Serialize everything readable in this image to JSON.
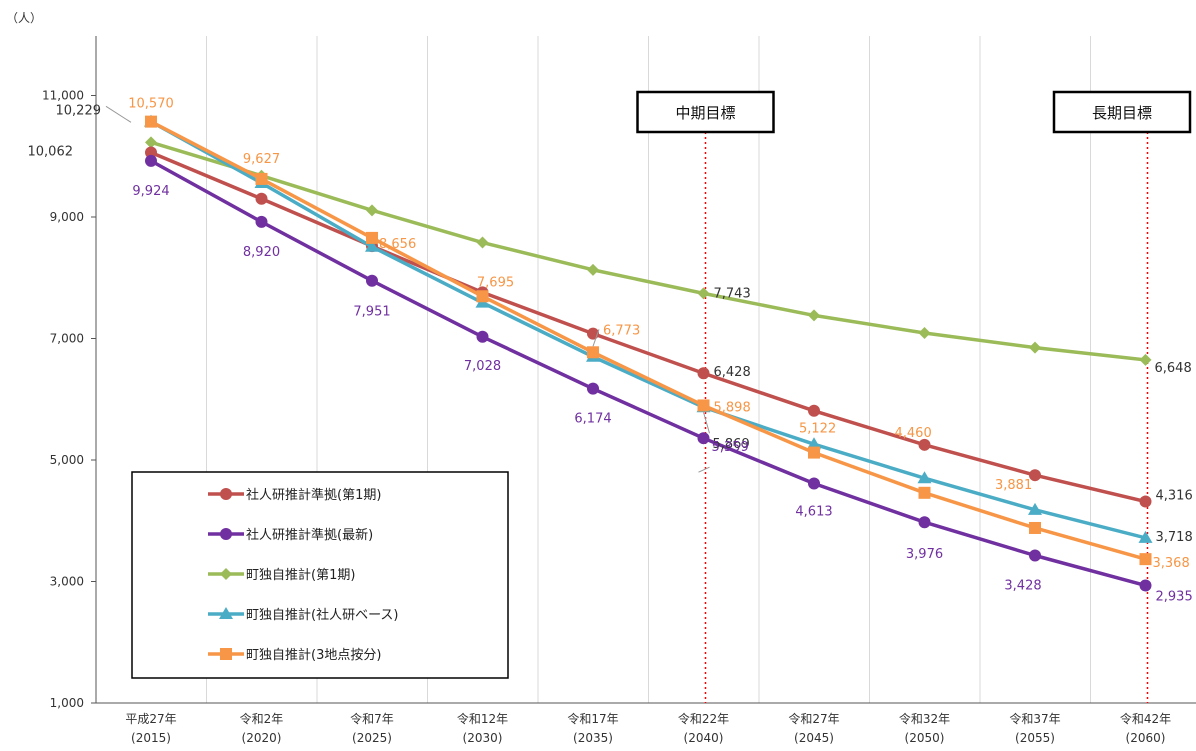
{
  "chart_data": {
    "type": "line",
    "title": "",
    "unit_label": "（人）",
    "ylim": [
      1000,
      12000
    ],
    "yticks": [
      1000,
      3000,
      5000,
      7000,
      9000,
      11000
    ],
    "yticks_display": [
      "1,000",
      "3,000",
      "5,000",
      "7,000",
      "9,000",
      "11,000"
    ],
    "grid": "vertical",
    "categories": [
      {
        "era": "平成27年",
        "year": "(2015)"
      },
      {
        "era": "令和2年",
        "year": "(2020)"
      },
      {
        "era": "令和7年",
        "year": "(2025)"
      },
      {
        "era": "令和12年",
        "year": "(2030)"
      },
      {
        "era": "令和17年",
        "year": "(2035)"
      },
      {
        "era": "令和22年",
        "year": "(2040)"
      },
      {
        "era": "令和27年",
        "year": "(2045)"
      },
      {
        "era": "令和32年",
        "year": "(2050)"
      },
      {
        "era": "令和37年",
        "year": "(2055)"
      },
      {
        "era": "令和42年",
        "year": "(2060)"
      }
    ],
    "series": [
      {
        "name": "社人研推計準拠(第1期)",
        "color": "#c0504d",
        "marker": "circle",
        "values": [
          10062,
          9300,
          8520,
          7760,
          7080,
          6428,
          5810,
          5250,
          4750,
          4316
        ]
      },
      {
        "name": "社人研推計準拠(最新)",
        "color": "#7030a0",
        "marker": "circle",
        "values": [
          9924,
          8920,
          7951,
          7028,
          6174,
          5359,
          4613,
          3976,
          3428,
          2935
        ]
      },
      {
        "name": "町独自推計(第1期)",
        "color": "#9bbb59",
        "marker": "diamond",
        "values": [
          10229,
          9680,
          9110,
          8580,
          8130,
          7743,
          7380,
          7090,
          6850,
          6648
        ]
      },
      {
        "name": "町独自推計(社人研ベース)",
        "color": "#4bacc6",
        "marker": "triangle",
        "values": [
          10570,
          9560,
          8510,
          7590,
          6700,
          5869,
          5260,
          4700,
          4180,
          3718
        ]
      },
      {
        "name": "町独自推計(3地点按分)",
        "color": "#f79646",
        "marker": "square",
        "values": [
          10570,
          9627,
          8656,
          7695,
          6773,
          5898,
          5122,
          4460,
          3881,
          3368
        ]
      }
    ],
    "data_labels": [
      {
        "text": "10,570",
        "series": 4,
        "index": 0
      },
      {
        "text": "10,229",
        "series": 2,
        "index": 0
      },
      {
        "text": "10,062",
        "series": 0,
        "index": 0
      },
      {
        "text": "9,924",
        "series": 1,
        "index": 0
      },
      {
        "text": "9,627",
        "series": 4,
        "index": 1
      },
      {
        "text": "8,920",
        "series": 1,
        "index": 1
      },
      {
        "text": "8,656",
        "series": 4,
        "index": 2
      },
      {
        "text": "7,951",
        "series": 1,
        "index": 2
      },
      {
        "text": "7,695",
        "series": 4,
        "index": 3
      },
      {
        "text": "7,028",
        "series": 1,
        "index": 3
      },
      {
        "text": "6,773",
        "series": 4,
        "index": 4
      },
      {
        "text": "6,174",
        "series": 1,
        "index": 4
      },
      {
        "text": "7,743",
        "series": 2,
        "index": 5
      },
      {
        "text": "6,428",
        "series": 0,
        "index": 5
      },
      {
        "text": "5,898",
        "series": 4,
        "index": 5
      },
      {
        "text": "5,869",
        "series": 3,
        "index": 5
      },
      {
        "text": "5,359",
        "series": 1,
        "index": 5
      },
      {
        "text": "5,122",
        "series": 4,
        "index": 6
      },
      {
        "text": "4,613",
        "series": 1,
        "index": 6
      },
      {
        "text": "4,460",
        "series": 4,
        "index": 7
      },
      {
        "text": "3,976",
        "series": 1,
        "index": 7
      },
      {
        "text": "3,881",
        "series": 4,
        "index": 8
      },
      {
        "text": "3,428",
        "series": 1,
        "index": 8
      },
      {
        "text": "6,648",
        "series": 2,
        "index": 9
      },
      {
        "text": "4,316",
        "series": 0,
        "index": 9
      },
      {
        "text": "3,718",
        "series": 3,
        "index": 9
      },
      {
        "text": "3,368",
        "series": 4,
        "index": 9
      },
      {
        "text": "2,935",
        "series": 1,
        "index": 9
      }
    ],
    "annotations": [
      {
        "text": "中期目標",
        "category_index": 5,
        "line_color": "#ff0000"
      },
      {
        "text": "長期目標",
        "category_index": 9,
        "line_color": "#ff0000"
      }
    ],
    "legend_position": "bottom-left"
  }
}
